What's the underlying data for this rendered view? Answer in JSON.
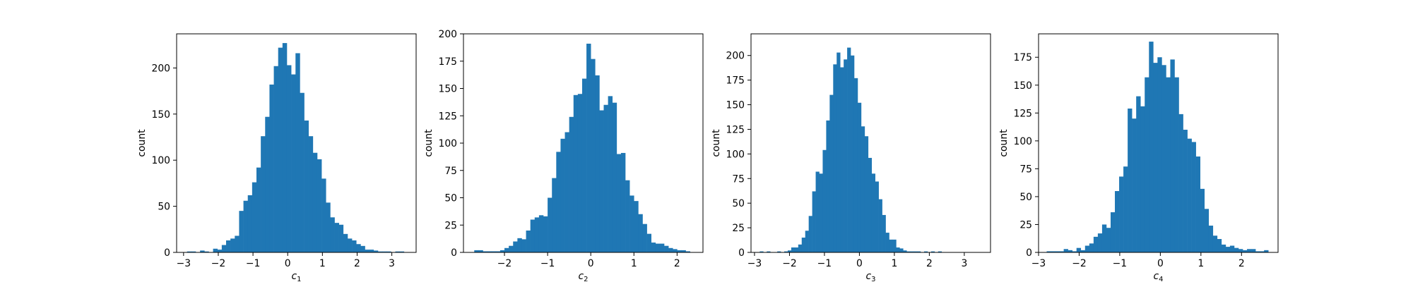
{
  "chart_data": [
    {
      "type": "bar",
      "xlabel": "c",
      "xlabel_sub": "1",
      "ylabel": "count",
      "xlim": [
        -3.2,
        3.7
      ],
      "ylim": [
        0,
        237
      ],
      "xticks": [
        -3,
        -2,
        -1,
        0,
        1,
        2,
        3
      ],
      "yticks": [
        0,
        50,
        100,
        150,
        200
      ],
      "color": "#1f77b4",
      "bins": {
        "start": -2.9,
        "width": 0.125,
        "counts": [
          1,
          1,
          0,
          2,
          1,
          0,
          4,
          3,
          8,
          13,
          15,
          18,
          45,
          56,
          62,
          76,
          92,
          126,
          147,
          182,
          202,
          222,
          227,
          203,
          193,
          216,
          173,
          143,
          126,
          108,
          101,
          80,
          54,
          38,
          32,
          30,
          20,
          15,
          13,
          9,
          7,
          3,
          3,
          2,
          1,
          1,
          1,
          0,
          1,
          1
        ]
      }
    },
    {
      "type": "bar",
      "xlabel": "c",
      "xlabel_sub": "2",
      "ylabel": "count",
      "xlim": [
        -2.95,
        2.6
      ],
      "ylim": [
        0,
        200
      ],
      "xticks": [
        -2,
        -1,
        0,
        1,
        2
      ],
      "yticks": [
        0,
        25,
        50,
        75,
        100,
        125,
        150,
        175,
        200
      ],
      "color": "#1f77b4",
      "bins": {
        "start": -2.7,
        "width": 0.1,
        "counts": [
          2,
          2,
          1,
          1,
          1,
          1,
          2,
          4,
          6,
          10,
          13,
          12,
          20,
          30,
          32,
          34,
          33,
          50,
          68,
          92,
          104,
          110,
          124,
          144,
          145,
          159,
          191,
          177,
          162,
          130,
          135,
          143,
          137,
          90,
          91,
          66,
          52,
          47,
          35,
          26,
          17,
          9,
          8,
          8,
          6,
          4,
          3,
          2,
          2,
          1
        ]
      }
    },
    {
      "type": "bar",
      "xlabel": "c",
      "xlabel_sub": "3",
      "ylabel": "count",
      "xlim": [
        -3.1,
        3.75
      ],
      "ylim": [
        0,
        222
      ],
      "xticks": [
        -3,
        -2,
        -1,
        0,
        1,
        2,
        3
      ],
      "yticks": [
        0,
        25,
        50,
        75,
        100,
        125,
        150,
        175,
        200
      ],
      "color": "#1f77b4",
      "bins": {
        "start": -2.85,
        "width": 0.1,
        "counts": [
          1,
          0,
          1,
          0,
          0,
          1,
          0,
          1,
          2,
          5,
          5,
          8,
          15,
          22,
          37,
          62,
          82,
          80,
          104,
          134,
          160,
          191,
          203,
          188,
          196,
          208,
          200,
          177,
          152,
          128,
          118,
          96,
          80,
          72,
          54,
          38,
          20,
          13,
          13,
          5,
          4,
          2,
          1,
          1,
          1,
          1,
          0,
          1,
          0,
          1,
          0,
          1
        ]
      }
    },
    {
      "type": "bar",
      "xlabel": "c",
      "xlabel_sub": "4",
      "ylabel": "count",
      "xlim": [
        -3.0,
        2.9
      ],
      "ylim": [
        0,
        196
      ],
      "xticks": [
        -3,
        -2,
        -1,
        0,
        1,
        2
      ],
      "yticks": [
        0,
        25,
        50,
        75,
        100,
        125,
        150,
        175
      ],
      "color": "#1f77b4",
      "bins": {
        "start": -2.8,
        "width": 0.105,
        "counts": [
          1,
          1,
          1,
          1,
          3,
          2,
          1,
          4,
          2,
          6,
          8,
          14,
          17,
          25,
          22,
          36,
          55,
          68,
          77,
          129,
          120,
          140,
          131,
          157,
          189,
          170,
          175,
          168,
          157,
          173,
          157,
          124,
          110,
          102,
          99,
          86,
          57,
          39,
          24,
          15,
          12,
          7,
          5,
          6,
          4,
          3,
          2,
          3,
          3,
          1,
          1,
          2
        ]
      }
    }
  ]
}
